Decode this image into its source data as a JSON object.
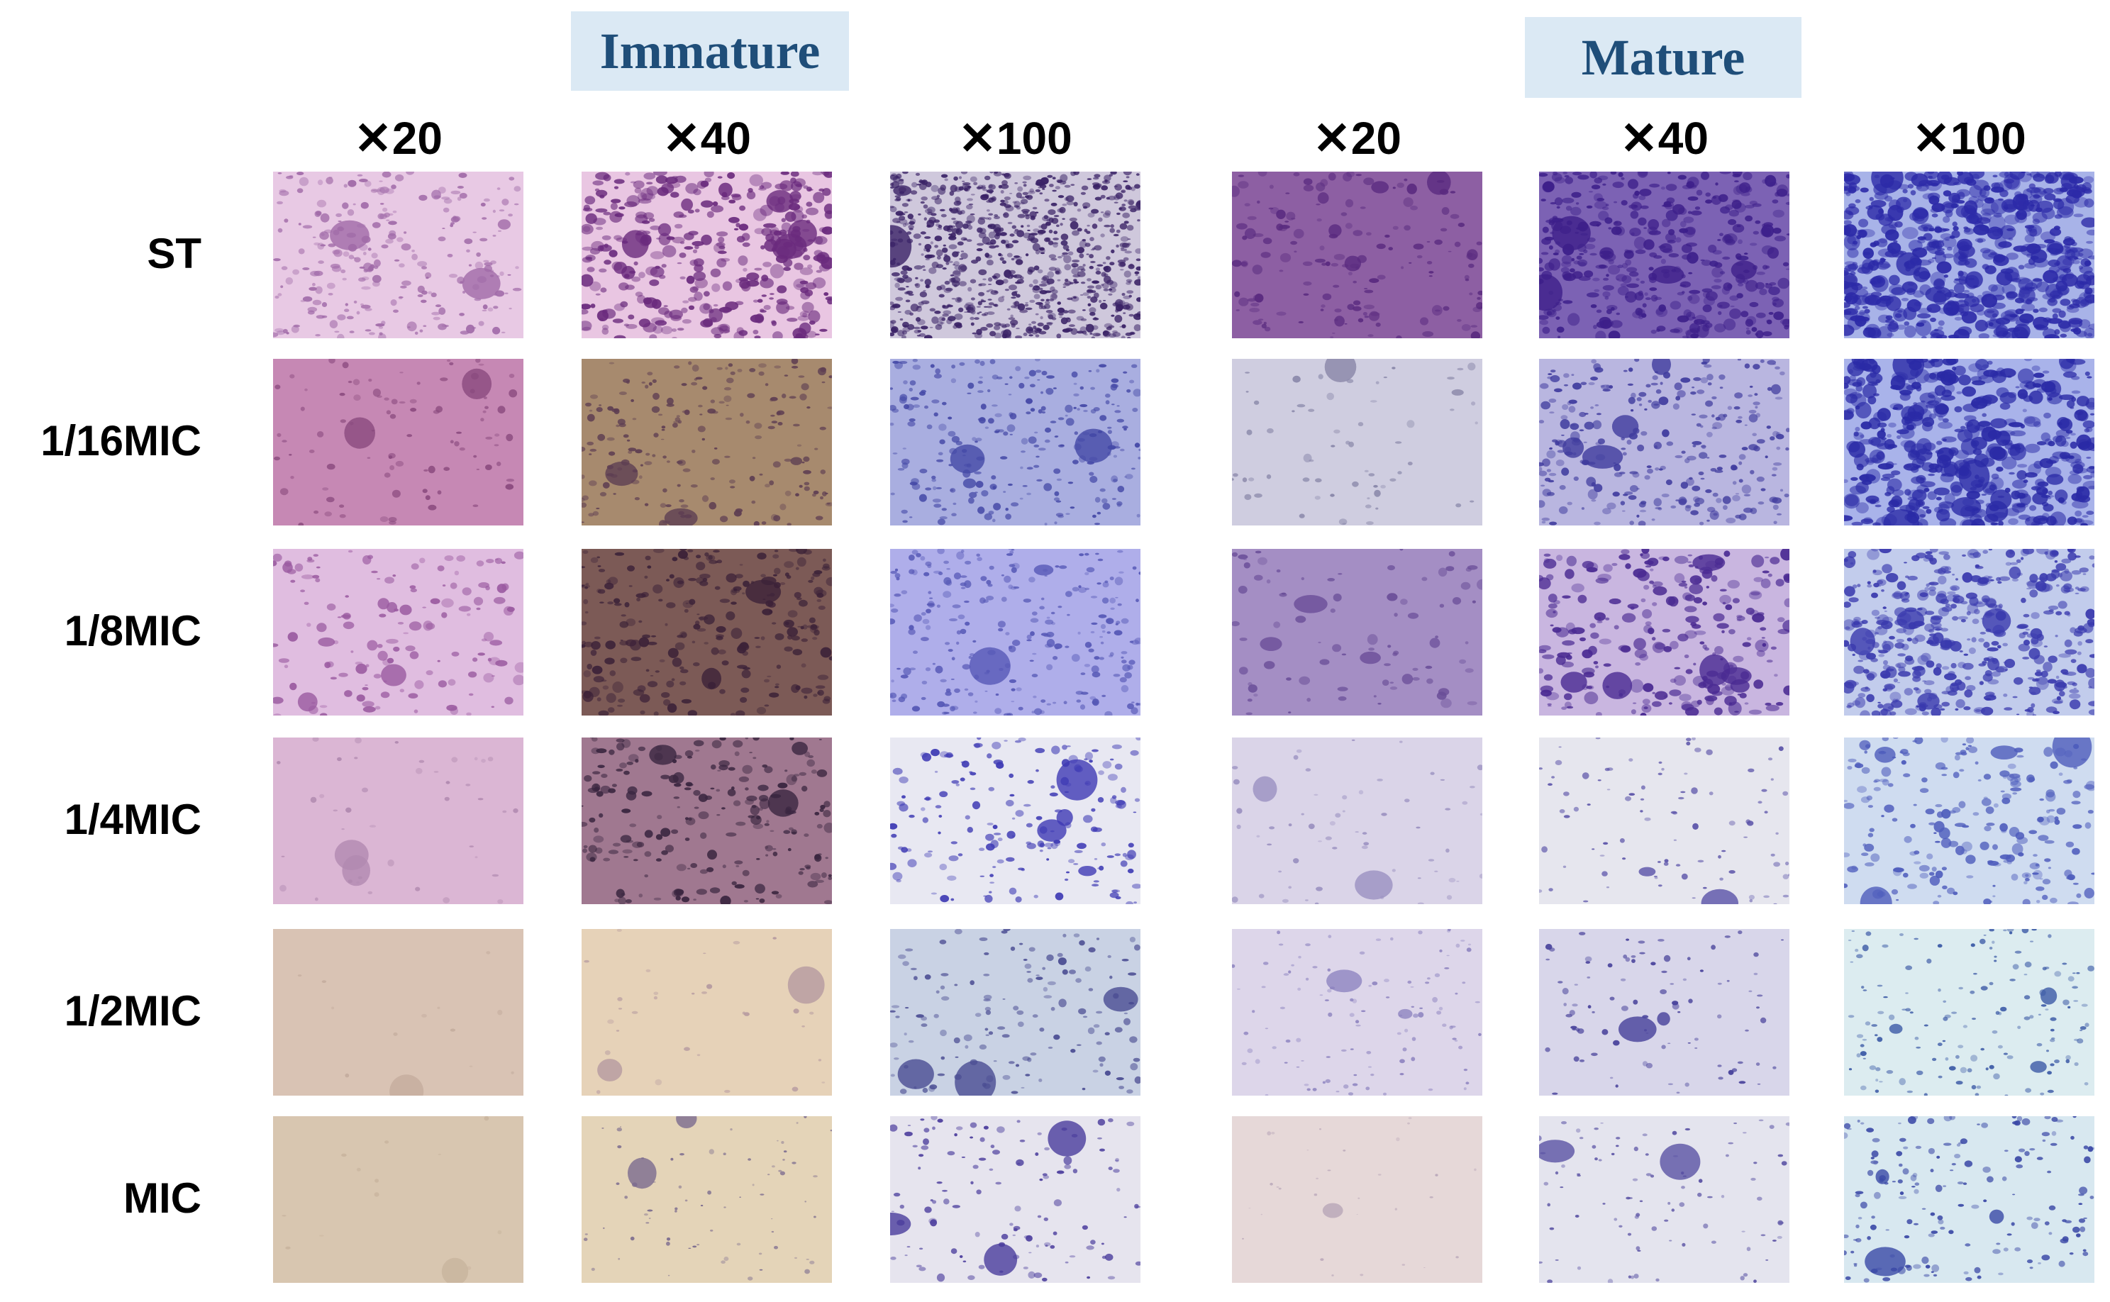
{
  "groups": [
    {
      "label": "Immature"
    },
    {
      "label": "Mature"
    }
  ],
  "magnifications": [
    "✕20",
    "✕40",
    "✕100",
    "✕20",
    "✕40",
    "✕100"
  ],
  "rows": [
    "ST",
    "1/16MIC",
    "1/8MIC",
    "1/4MIC",
    "1/2MIC",
    "MIC"
  ],
  "panels": [
    [
      {
        "bg": "#e8c9e4",
        "fg": "#a06aa8",
        "n": 260,
        "r": [
          2,
          7
        ],
        "c": 3
      },
      {
        "bg": "#e9c6e2",
        "fg": "#6a2a7d",
        "n": 380,
        "r": [
          3,
          10
        ],
        "c": 5
      },
      {
        "bg": "#cfc8dc",
        "fg": "#3a2266",
        "n": 900,
        "r": [
          2,
          6
        ],
        "c": 2
      },
      {
        "bg": "#8d5fa3",
        "fg": "#5a2b80",
        "n": 160,
        "r": [
          2,
          8
        ],
        "c": 4
      },
      {
        "bg": "#7c62b4",
        "fg": "#3d1f8a",
        "n": 420,
        "r": [
          2,
          9
        ],
        "c": 5
      },
      {
        "bg": "#a8b3e8",
        "fg": "#2c2aa8",
        "n": 650,
        "r": [
          3,
          12
        ],
        "c": 7
      }
    ],
    [
      {
        "bg": "#c688b4",
        "fg": "#8a4a7e",
        "n": 90,
        "r": [
          2,
          6
        ],
        "c": 2
      },
      {
        "bg": "#a78a6e",
        "fg": "#5e3e52",
        "n": 200,
        "r": [
          2,
          6
        ],
        "c": 3
      },
      {
        "bg": "#a9aee0",
        "fg": "#4448a6",
        "n": 260,
        "r": [
          2,
          6
        ],
        "c": 3
      },
      {
        "bg": "#cfcde0",
        "fg": "#8886a8",
        "n": 60,
        "r": [
          2,
          6
        ],
        "c": 2
      },
      {
        "bg": "#b9b6e0",
        "fg": "#403c9e",
        "n": 300,
        "r": [
          2,
          7
        ],
        "c": 4
      },
      {
        "bg": "#a9b3ea",
        "fg": "#2a2aa6",
        "n": 520,
        "r": [
          3,
          12
        ],
        "c": 6
      }
    ],
    [
      {
        "bg": "#e0bde0",
        "fg": "#9a5aa0",
        "n": 140,
        "r": [
          2,
          9
        ],
        "c": 3
      },
      {
        "bg": "#7c5a56",
        "fg": "#3c2238",
        "n": 260,
        "r": [
          2,
          8
        ],
        "c": 3
      },
      {
        "bg": "#afaeea",
        "fg": "#5658b6",
        "n": 260,
        "r": [
          2,
          6
        ],
        "c": 2
      },
      {
        "bg": "#a48ec4",
        "fg": "#6a4e98",
        "n": 80,
        "r": [
          2,
          8
        ],
        "c": 3
      },
      {
        "bg": "#c9b6e0",
        "fg": "#4a2a92",
        "n": 260,
        "r": [
          2,
          10
        ],
        "c": 6
      },
      {
        "bg": "#c2ccec",
        "fg": "#3a3aae",
        "n": 480,
        "r": [
          2,
          9
        ],
        "c": 4
      }
    ],
    [
      {
        "bg": "#dbb6d4",
        "fg": "#b18ab0",
        "n": 40,
        "r": [
          2,
          5
        ],
        "c": 2
      },
      {
        "bg": "#a07890",
        "fg": "#3a2640",
        "n": 220,
        "r": [
          2,
          8
        ],
        "c": 3
      },
      {
        "bg": "#e8e8f2",
        "fg": "#3e3ab4",
        "n": 180,
        "r": [
          2,
          7
        ],
        "c": 4
      },
      {
        "bg": "#dad4e8",
        "fg": "#9a90c0",
        "n": 60,
        "r": [
          2,
          5
        ],
        "c": 2
      },
      {
        "bg": "#e6e6ee",
        "fg": "#5a52a8",
        "n": 90,
        "r": [
          2,
          5
        ],
        "c": 2
      },
      {
        "bg": "#cfdcf0",
        "fg": "#4e5cbc",
        "n": 220,
        "r": [
          2,
          8
        ],
        "c": 4
      }
    ],
    [
      {
        "bg": "#d9c3b4",
        "fg": "#c4ad9e",
        "n": 12,
        "r": [
          2,
          4
        ],
        "c": 1
      },
      {
        "bg": "#e6d2b8",
        "fg": "#b59aa0",
        "n": 30,
        "r": [
          2,
          5
        ],
        "c": 2
      },
      {
        "bg": "#c9d2e4",
        "fg": "#4a4c92",
        "n": 140,
        "r": [
          2,
          6
        ],
        "c": 3
      },
      {
        "bg": "#ddd6ea",
        "fg": "#8e84c0",
        "n": 110,
        "r": [
          2,
          4
        ],
        "c": 2
      },
      {
        "bg": "#d8d6ea",
        "fg": "#46409a",
        "n": 90,
        "r": [
          2,
          5
        ],
        "c": 2
      },
      {
        "bg": "#dcecf0",
        "fg": "#3c5aa6",
        "n": 150,
        "r": [
          2,
          5
        ],
        "c": 3
      }
    ],
    [
      {
        "bg": "#d8c6b0",
        "fg": "#c8b49e",
        "n": 12,
        "r": [
          2,
          4
        ],
        "c": 1
      },
      {
        "bg": "#e4d4b8",
        "fg": "#7a6a8e",
        "n": 70,
        "r": [
          1,
          4
        ],
        "c": 2
      },
      {
        "bg": "#e6e4ee",
        "fg": "#4a3c9c",
        "n": 120,
        "r": [
          2,
          6
        ],
        "c": 3
      },
      {
        "bg": "#e6d8d8",
        "fg": "#b8a6b8",
        "n": 30,
        "r": [
          1,
          3
        ],
        "c": 1
      },
      {
        "bg": "#e4e4ee",
        "fg": "#5a52a4",
        "n": 90,
        "r": [
          2,
          4
        ],
        "c": 2
      },
      {
        "bg": "#d8e8f0",
        "fg": "#3a48a6",
        "n": 170,
        "r": [
          2,
          6
        ],
        "c": 3
      }
    ]
  ]
}
